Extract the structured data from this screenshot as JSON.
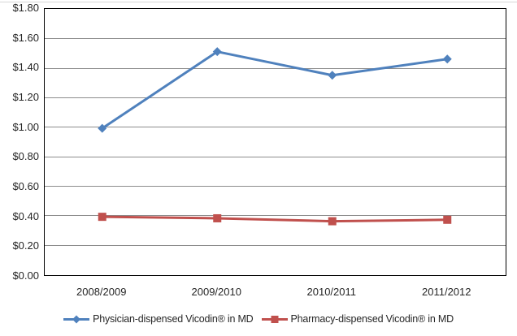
{
  "chart_data": {
    "type": "line",
    "title": "",
    "categories": [
      "2008/2009",
      "2009/2010",
      "2010/2011",
      "2011/2012"
    ],
    "series": [
      {
        "name": "Physician-dispensed Vicodin® in MD",
        "values": [
          0.99,
          1.51,
          1.35,
          1.46
        ],
        "color": "#4F81BD",
        "marker": "diamond"
      },
      {
        "name": "Pharmacy-dispensed Vicodin® in MD",
        "values": [
          0.39,
          0.38,
          0.36,
          0.37
        ],
        "color": "#C0504D",
        "marker": "square"
      }
    ],
    "y_axis": {
      "min": 0,
      "max": 1.8,
      "step": 0.2,
      "tick_labels": [
        "$1.80",
        "$1.60",
        "$1.40",
        "$1.20",
        "$1.00",
        "$0.80",
        "$0.60",
        "$0.40",
        "$0.20",
        "$0.00"
      ]
    },
    "xlabel": "",
    "ylabel": "",
    "grid": true,
    "legend_position": "bottom"
  },
  "colors": {
    "gridline": "#8c8c8c",
    "plot_border": "#000000",
    "axis_text": "#262626"
  }
}
